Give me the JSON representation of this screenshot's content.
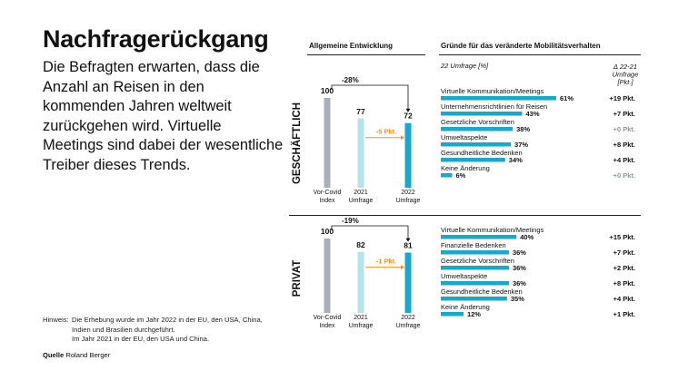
{
  "title": "Nachfragerückgang",
  "subtitle": "Die Befragten erwarten, dass die Anzahl an Reisen in den kommenden Jahren weltweit zurückgehen wird. Virtuelle Meetings sind dabei der wesentliche Treiber dieses Trends.",
  "note": {
    "label": "Hinweis:",
    "lines": [
      "Die Erhebung wurde im Jahr 2022 in der EU, den USA, China,",
      "Indien und Brasilien durchgeführt.",
      "Im Jahr 2021 in der EU, den USA und China."
    ]
  },
  "source": {
    "label": "Quelle",
    "text": "Roland Berger"
  },
  "headers": {
    "left": "Allgemeine Entwicklung",
    "right": "Gründe für das veränderte Mobilitätsverhalten",
    "survey": "22 Umfrage [%]",
    "delta": "Δ 22-21\nUmfrage\n[Pkt.]"
  },
  "colors": {
    "grey": "#a6b0ba",
    "light": "#b2e3ef",
    "teal": "#16a8cd",
    "orange": "#f39323",
    "zero": "#8c959d"
  },
  "chart_data": [
    {
      "type": "bar",
      "segment": "GESCHÄFTLICH",
      "categories": [
        "Vor-Covid\nIndex",
        "2021\nUmfrage",
        "2022\nUmfrage"
      ],
      "values": [
        100,
        77,
        72
      ],
      "ylim": [
        0,
        100
      ],
      "change_total": "-28%",
      "change_step": "-5 Pkt."
    },
    {
      "type": "bar",
      "segment": "PRIVAT",
      "categories": [
        "Vor-Covid\nIndex",
        "2021\nUmfrage",
        "2022\nUmfrage"
      ],
      "values": [
        100,
        82,
        81
      ],
      "ylim": [
        0,
        100
      ],
      "change_total": "-19%",
      "change_step": "-1 Pkt."
    },
    {
      "type": "bar",
      "orientation": "horizontal",
      "segment": "GESCHÄFTLICH",
      "categories": [
        "Virtuelle Kommunikation/Meetings",
        "Unternehmensrichtlinien für Reisen",
        "Gesetzliche Vorschriften",
        "Umweltaspekte",
        "Gesundheitliche Bedenken",
        "Keine Änderung"
      ],
      "values": [
        61,
        43,
        38,
        37,
        34,
        6
      ],
      "value_labels": [
        "61%",
        "43%",
        "38%",
        "37%",
        "34%",
        "6%"
      ],
      "delta": [
        "+19 Pkt.",
        "+7 Pkt.",
        "+0 Pkt.",
        "+8 Pkt.",
        "+4 Pkt.",
        "+0 Pkt."
      ]
    },
    {
      "type": "bar",
      "orientation": "horizontal",
      "segment": "PRIVAT",
      "categories": [
        "Virtuelle Kommunikation/Meetings",
        "Finanzielle Bedenken",
        "Gesetzliche Vorschriften",
        "Umweltaspekte",
        "Gesundheitliche Bedenken",
        "Keine Änderung"
      ],
      "values": [
        40,
        36,
        36,
        36,
        35,
        12
      ],
      "value_labels": [
        "40%",
        "36%",
        "36%",
        "36%",
        "35%",
        "12%"
      ],
      "delta": [
        "+15 Pkt.",
        "+7 Pkt.",
        "+2 Pkt.",
        "+8 Pkt.",
        "+4 Pkt.",
        "+1 Pkt."
      ]
    }
  ]
}
